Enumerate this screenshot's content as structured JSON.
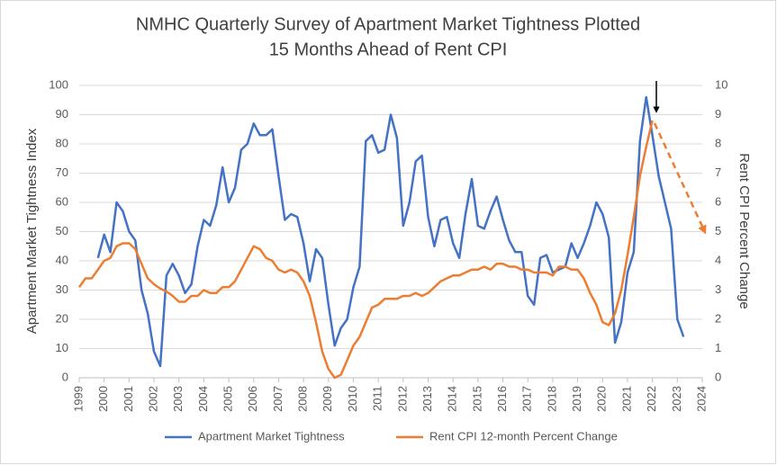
{
  "chart_data": {
    "type": "line",
    "title": [
      "NMHC Quarterly Survey of Apartment Market Tightness Plotted",
      "15 Months Ahead of Rent CPI"
    ],
    "y_label": "Apartment Market Tightness Index",
    "y2_label": "Rent CPI Percent Change",
    "x": [
      1999,
      1999.25,
      1999.5,
      1999.75,
      2000,
      2000.25,
      2000.5,
      2000.75,
      2001,
      2001.25,
      2001.5,
      2001.75,
      2002,
      2002.25,
      2002.5,
      2002.75,
      2003,
      2003.25,
      2003.5,
      2003.75,
      2004,
      2004.25,
      2004.5,
      2004.75,
      2005,
      2005.25,
      2005.5,
      2005.75,
      2006,
      2006.25,
      2006.5,
      2006.75,
      2007,
      2007.25,
      2007.5,
      2007.75,
      2008,
      2008.25,
      2008.5,
      2008.75,
      2009,
      2009.25,
      2009.5,
      2009.75,
      2010,
      2010.25,
      2010.5,
      2010.75,
      2011,
      2011.25,
      2011.5,
      2011.75,
      2012,
      2012.25,
      2012.5,
      2012.75,
      2013,
      2013.25,
      2013.5,
      2013.75,
      2014,
      2014.25,
      2014.5,
      2014.75,
      2015,
      2015.25,
      2015.5,
      2015.75,
      2016,
      2016.25,
      2016.5,
      2016.75,
      2017,
      2017.25,
      2017.5,
      2017.75,
      2018,
      2018.25,
      2018.5,
      2018.75,
      2019,
      2019.25,
      2019.5,
      2019.75,
      2020,
      2020.25,
      2020.5,
      2020.75,
      2021,
      2021.25,
      2021.5,
      2021.75,
      2022,
      2022.25,
      2022.5,
      2022.75,
      2023,
      2023.25
    ],
    "series": [
      {
        "name": "Apartment Market Tightness",
        "color": "#4472c4",
        "axis": "y",
        "values": [
          null,
          null,
          null,
          41,
          49,
          43,
          60,
          57,
          50,
          47,
          30,
          22,
          9,
          4,
          35,
          39,
          35,
          29,
          32,
          45,
          54,
          52,
          59,
          72,
          60,
          65,
          78,
          80,
          87,
          83,
          83,
          85,
          69,
          54,
          56,
          55,
          46,
          33,
          44,
          41,
          25,
          11,
          17,
          20,
          31,
          38,
          81,
          83,
          77,
          78,
          90,
          82,
          52,
          60,
          74,
          76,
          55,
          45,
          54,
          55,
          46,
          41,
          56,
          68,
          52,
          51,
          57,
          62,
          54,
          47,
          43,
          43,
          28,
          25,
          41,
          42,
          36,
          37,
          38,
          46,
          41,
          46,
          52,
          60,
          56,
          48,
          12,
          19,
          36,
          43,
          81,
          96,
          83,
          69,
          60,
          51,
          20,
          14
        ]
      },
      {
        "name": "Rent CPI 12-month Percent Change",
        "color": "#ed7d31",
        "axis": "y2",
        "values": [
          3.1,
          3.4,
          3.4,
          3.7,
          4.0,
          4.1,
          4.5,
          4.6,
          4.6,
          4.4,
          3.9,
          3.4,
          3.2,
          3.05,
          2.95,
          2.8,
          2.6,
          2.6,
          2.8,
          2.8,
          3.0,
          2.9,
          2.9,
          3.1,
          3.1,
          3.3,
          3.7,
          4.1,
          4.5,
          4.4,
          4.1,
          4.0,
          3.7,
          3.6,
          3.7,
          3.6,
          3.3,
          2.8,
          1.9,
          0.9,
          0.3,
          0.0,
          0.1,
          0.6,
          1.1,
          1.4,
          1.9,
          2.4,
          2.5,
          2.7,
          2.7,
          2.7,
          2.8,
          2.8,
          2.9,
          2.8,
          2.9,
          3.1,
          3.3,
          3.4,
          3.5,
          3.5,
          3.6,
          3.7,
          3.7,
          3.8,
          3.7,
          3.9,
          3.9,
          3.8,
          3.8,
          3.7,
          3.7,
          3.6,
          3.6,
          3.6,
          3.5,
          3.8,
          3.8,
          3.7,
          3.7,
          3.4,
          2.9,
          2.5,
          1.9,
          1.8,
          2.2,
          3.0,
          4.2,
          5.5,
          6.9,
          7.9,
          8.8,
          null,
          null,
          null,
          null,
          null
        ]
      }
    ],
    "xlim": [
      1999,
      2024
    ],
    "xticks": [
      1999,
      2000,
      2001,
      2002,
      2003,
      2004,
      2005,
      2006,
      2007,
      2008,
      2009,
      2010,
      2011,
      2012,
      2013,
      2014,
      2015,
      2016,
      2017,
      2018,
      2019,
      2020,
      2021,
      2022,
      2023,
      2024
    ],
    "ylim": [
      0,
      100
    ],
    "yticks": [
      0,
      10,
      20,
      30,
      40,
      50,
      60,
      70,
      80,
      90,
      100
    ],
    "y2lim": [
      0,
      10
    ],
    "y2ticks": [
      0,
      1,
      2,
      3,
      4,
      5,
      6,
      7,
      8,
      9,
      10
    ],
    "grid": true,
    "legend": "bottom"
  }
}
